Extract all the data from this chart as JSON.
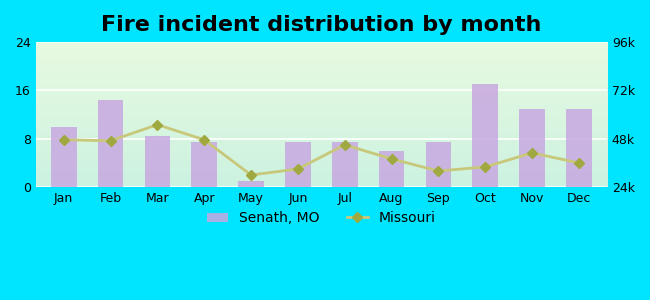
{
  "title": "Fire incident distribution by month",
  "months": [
    "Jan",
    "Feb",
    "Mar",
    "Apr",
    "May",
    "Jun",
    "Jul",
    "Aug",
    "Sep",
    "Oct",
    "Nov",
    "Dec"
  ],
  "senath_values": [
    10,
    14.5,
    8.5,
    7.5,
    1,
    7.5,
    7.5,
    6,
    7.5,
    17,
    13,
    13
  ],
  "missouri_values": [
    47500,
    47000,
    55000,
    47500,
    30000,
    33000,
    45000,
    38000,
    32000,
    34000,
    41000,
    36000
  ],
  "bar_color": "#c8a8e0",
  "line_color": "#c8c87a",
  "marker_color": "#a0a840",
  "left_ylim": [
    0,
    24
  ],
  "left_yticks": [
    0,
    8,
    16,
    24
  ],
  "right_ylim": [
    24000,
    96000
  ],
  "right_yticks": [
    24000,
    48000,
    72000,
    96000
  ],
  "right_yticklabels": [
    "24k",
    "48k",
    "72k",
    "96k"
  ],
  "legend_senath": "Senath, MO",
  "legend_missouri": "Missouri",
  "title_fontsize": 16,
  "tick_fontsize": 9,
  "legend_fontsize": 10,
  "bg_color": "#00e5ff"
}
